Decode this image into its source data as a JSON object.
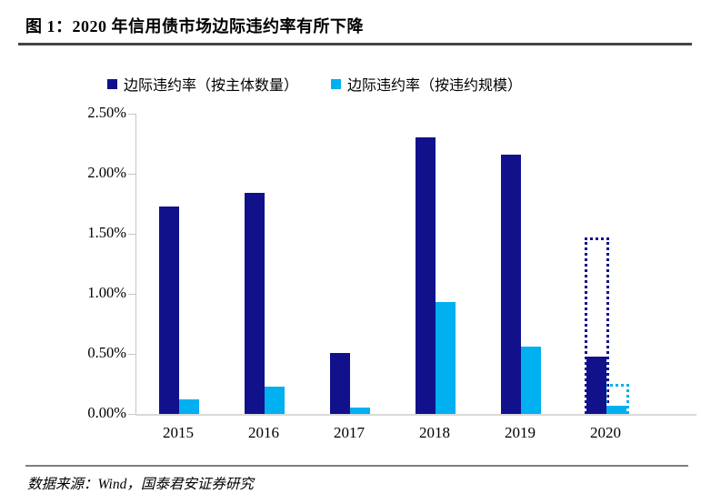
{
  "header": {
    "title": "图 1：2020 年信用债市场边际违约率有所下降"
  },
  "footer": {
    "source": "数据来源：Wind，国泰君安证券研究"
  },
  "chart_data": {
    "type": "bar",
    "title": "图 1：2020 年信用债市场边际违约率有所下降",
    "categories": [
      "2015",
      "2016",
      "2017",
      "2018",
      "2019",
      "2020"
    ],
    "series": [
      {
        "name": "边际违约率（按主体数量）",
        "color": "#11118C",
        "values": [
          1.73,
          1.84,
          0.51,
          2.3,
          2.16,
          0.48
        ],
        "dotted_values": [
          null,
          null,
          null,
          null,
          null,
          1.45
        ]
      },
      {
        "name": "边际违约率（按违约规模）",
        "color": "#00B0F0",
        "values": [
          0.12,
          0.23,
          0.05,
          0.93,
          0.56,
          0.07
        ],
        "dotted_values": [
          null,
          null,
          null,
          null,
          null,
          0.23
        ]
      }
    ],
    "xlabel": "",
    "ylabel": "",
    "ylim": [
      0,
      2.5
    ],
    "ytick_step": 0.5,
    "ytick_labels": [
      "0.00%",
      "0.50%",
      "1.00%",
      "1.50%",
      "2.00%",
      "2.50%"
    ],
    "grid": false,
    "legend_position": "top"
  }
}
